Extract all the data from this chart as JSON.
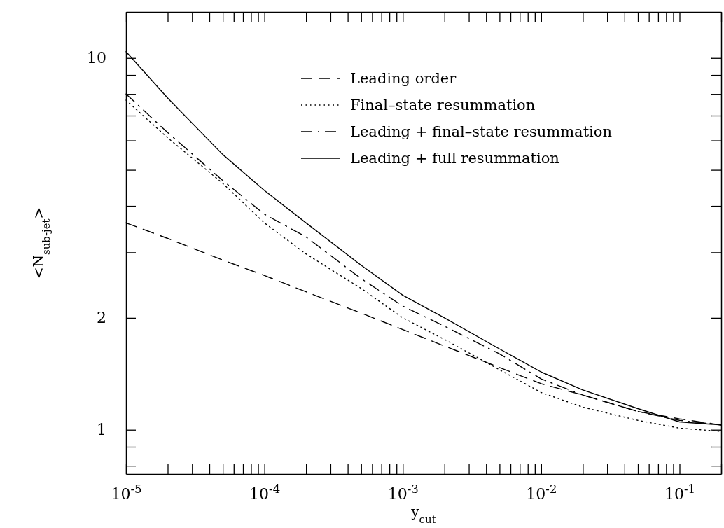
{
  "chart_data": {
    "type": "line",
    "xlabel": "y$_{cut}$",
    "ylabel": "<N$_{sub-jet}$>",
    "log": "xy",
    "legend": "top right",
    "grid": false,
    "x": [
      1e-05,
      2e-05,
      5e-05,
      0.0001,
      0.0002,
      0.0005,
      0.001,
      0.002,
      0.005,
      0.01,
      0.02,
      0.05,
      0.1,
      0.2
    ],
    "xlim": [
      1e-05,
      0.2
    ],
    "ylim": [
      0.76,
      13.3
    ],
    "xticks": [
      {
        "value": 1e-05,
        "label": "10$^{-5}$"
      },
      {
        "value": 2e-05,
        "label": null
      },
      {
        "value": 3e-05,
        "label": null
      },
      {
        "value": 4e-05,
        "label": null
      },
      {
        "value": 5e-05,
        "label": null
      },
      {
        "value": 6e-05,
        "label": null
      },
      {
        "value": 7e-05,
        "label": null
      },
      {
        "value": 8e-05,
        "label": null
      },
      {
        "value": 9e-05,
        "label": null
      },
      {
        "value": 0.0001,
        "label": "10$^{-4}$"
      },
      {
        "value": 0.0002,
        "label": null
      },
      {
        "value": 0.0003,
        "label": null
      },
      {
        "value": 0.0004,
        "label": null
      },
      {
        "value": 0.0005,
        "label": null
      },
      {
        "value": 0.0006,
        "label": null
      },
      {
        "value": 0.0007,
        "label": null
      },
      {
        "value": 0.0008,
        "label": null
      },
      {
        "value": 0.0009,
        "label": null
      },
      {
        "value": 0.001,
        "label": "10$^{-3}$"
      },
      {
        "value": 0.002,
        "label": null
      },
      {
        "value": 0.003,
        "label": null
      },
      {
        "value": 0.004,
        "label": null
      },
      {
        "value": 0.005,
        "label": null
      },
      {
        "value": 0.006,
        "label": null
      },
      {
        "value": 0.007,
        "label": null
      },
      {
        "value": 0.008,
        "label": null
      },
      {
        "value": 0.009,
        "label": null
      },
      {
        "value": 0.01,
        "label": "10$^{-2}$"
      },
      {
        "value": 0.02,
        "label": null
      },
      {
        "value": 0.03,
        "label": null
      },
      {
        "value": 0.04,
        "label": null
      },
      {
        "value": 0.05,
        "label": null
      },
      {
        "value": 0.06,
        "label": null
      },
      {
        "value": 0.07,
        "label": null
      },
      {
        "value": 0.08,
        "label": null
      },
      {
        "value": 0.09,
        "label": null
      },
      {
        "value": 0.1,
        "label": "10$^{-1}$"
      },
      {
        "value": 0.2,
        "label": null
      }
    ],
    "yticks": [
      {
        "value": 0.8,
        "label": null
      },
      {
        "value": 0.9,
        "label": null
      },
      1,
      2,
      {
        "value": 3,
        "label": null
      },
      {
        "value": 4,
        "label": null
      },
      {
        "value": 5,
        "label": null
      },
      {
        "value": 6,
        "label": null
      },
      {
        "value": 7,
        "label": null
      },
      {
        "value": 8,
        "label": null
      },
      {
        "value": 9,
        "label": null
      },
      10
    ],
    "series": [
      {
        "name": "Leading order",
        "color": "#000000",
        "line_style": "dashed",
        "values": [
          3.6,
          3.27,
          2.86,
          2.6,
          2.35,
          2.06,
          1.86,
          1.68,
          1.47,
          1.33,
          1.24,
          1.12,
          1.07,
          1.03
        ]
      },
      {
        "name": "Final–state resummation",
        "color": "#000000",
        "line_style": "dotted",
        "values": [
          7.7,
          6.1,
          4.6,
          3.6,
          2.97,
          2.4,
          2.0,
          1.75,
          1.45,
          1.26,
          1.15,
          1.06,
          1.01,
          0.99
        ]
      },
      {
        "name": "Leading + final–state resummation",
        "color": "#000000",
        "line_style": "dashdot",
        "values": [
          8.0,
          6.3,
          4.68,
          3.8,
          3.3,
          2.55,
          2.15,
          1.9,
          1.6,
          1.37,
          1.24,
          1.12,
          1.06,
          1.03
        ]
      },
      {
        "name": "Leading + full resummation",
        "color": "#000000",
        "line_style": "solid",
        "values": [
          10.4,
          7.8,
          5.5,
          4.4,
          3.6,
          2.77,
          2.3,
          2.0,
          1.65,
          1.43,
          1.28,
          1.14,
          1.05,
          1.03
        ]
      }
    ]
  }
}
